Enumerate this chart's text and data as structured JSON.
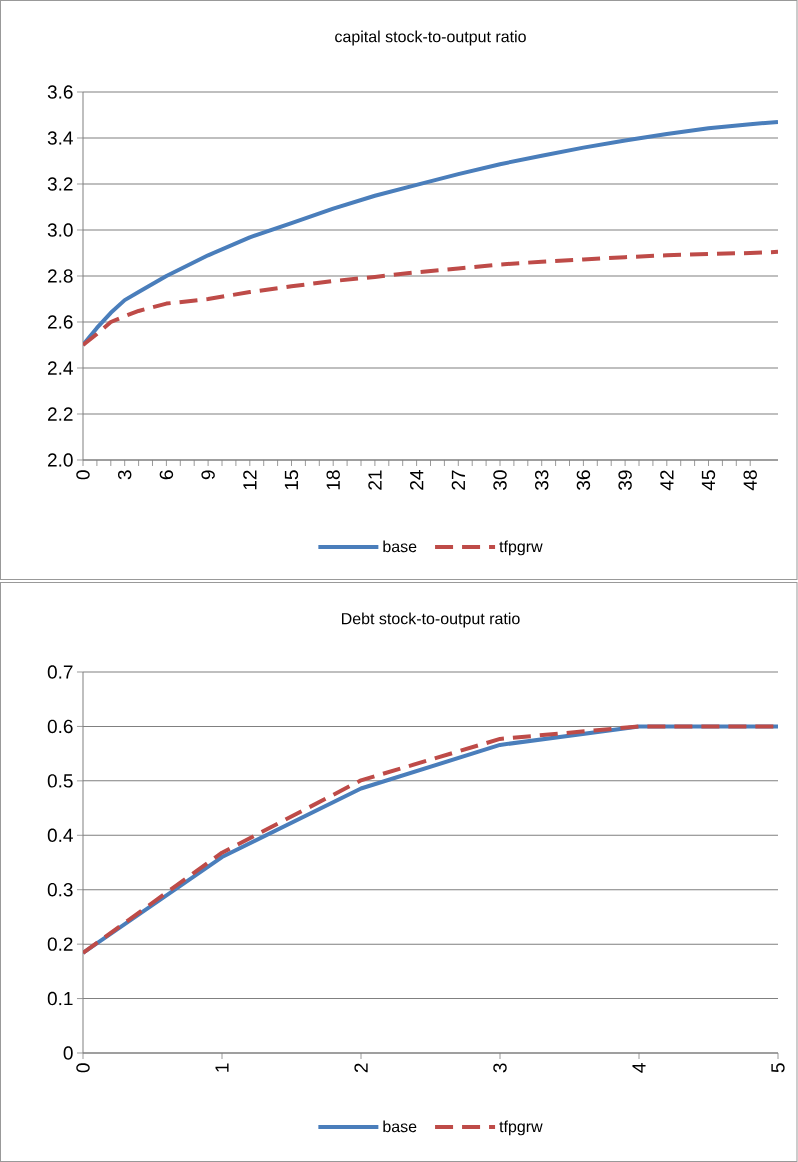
{
  "chart_data": [
    {
      "type": "line",
      "title": "capital stock-to-output ratio",
      "x": [
        0,
        1,
        2,
        3,
        4,
        6,
        9,
        12,
        15,
        18,
        21,
        24,
        27,
        30,
        33,
        36,
        39,
        42,
        45,
        48,
        50
      ],
      "series": [
        {
          "name": "base",
          "color": "#4a7ebb",
          "line_style": "solid",
          "values": [
            2.5,
            2.574,
            2.64,
            2.695,
            2.73,
            2.8,
            2.89,
            2.968,
            3.03,
            3.093,
            3.149,
            3.196,
            3.243,
            3.286,
            3.323,
            3.358,
            3.389,
            3.417,
            3.442,
            3.46,
            3.47
          ]
        },
        {
          "name": "tfpgrw",
          "color": "#be4b48",
          "line_style": "dashed",
          "values": [
            2.5,
            2.548,
            2.6,
            2.625,
            2.648,
            2.68,
            2.7,
            2.73,
            2.755,
            2.778,
            2.796,
            2.816,
            2.833,
            2.85,
            2.862,
            2.872,
            2.882,
            2.89,
            2.896,
            2.9,
            2.905
          ]
        }
      ],
      "xlim": [
        0,
        50
      ],
      "xticks": [
        0,
        3,
        6,
        9,
        12,
        15,
        18,
        21,
        24,
        27,
        30,
        33,
        36,
        39,
        42,
        45,
        48
      ],
      "ylim": [
        2.0,
        3.6
      ],
      "yticks": [
        {
          "value": 2,
          "label": "2.0"
        },
        2.2,
        2.4,
        2.6,
        2.8,
        {
          "value": 3,
          "label": "3.0"
        },
        3.2,
        3.4,
        3.6
      ],
      "grid": "y",
      "legend": "bottom"
    },
    {
      "type": "line",
      "title": "Debt stock-to-output ratio",
      "x": [
        0,
        1,
        2,
        3,
        4,
        5
      ],
      "series": [
        {
          "name": "base",
          "color": "#4a7ebb",
          "line_style": "solid",
          "values": [
            0.184,
            0.36,
            0.486,
            0.566,
            0.6,
            0.6
          ]
        },
        {
          "name": "tfpgrw",
          "color": "#be4b48",
          "line_style": "dashed",
          "values": [
            0.184,
            0.368,
            0.501,
            0.577,
            0.6,
            0.6
          ]
        }
      ],
      "xlim": [
        0,
        5
      ],
      "xticks": [
        0,
        1,
        2,
        3,
        4,
        5
      ],
      "ylim": [
        0,
        0.7
      ],
      "yticks": [
        0,
        0.1,
        0.2,
        0.3,
        0.4,
        0.5,
        0.6,
        0.7
      ],
      "grid": "y",
      "legend": "bottom"
    }
  ]
}
